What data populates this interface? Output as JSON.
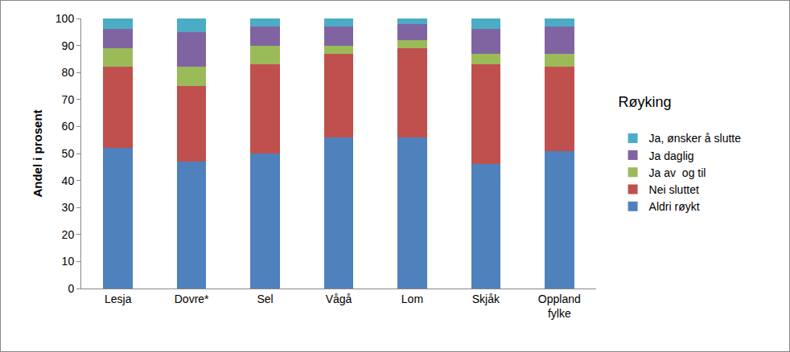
{
  "chart_data": {
    "type": "bar",
    "stacked": true,
    "y_label": "Andel i prosent",
    "legend_title": "Røyking",
    "legend": "right",
    "grid": false,
    "categories": [
      "Lesja",
      "Dovre*",
      "Sel",
      "Vågå",
      "Lom",
      "Skjåk",
      "Oppland fylke"
    ],
    "series": [
      {
        "name": "Aldri røykt",
        "color": "#4f81bd",
        "values": [
          52,
          47,
          50,
          56,
          56,
          46,
          51
        ]
      },
      {
        "name": "Nei sluttet",
        "color": "#c0504d",
        "values": [
          30,
          28,
          33,
          31,
          33,
          37,
          31
        ]
      },
      {
        "name": "Ja av  og til",
        "color": "#9bbb59",
        "values": [
          7,
          7,
          7,
          3,
          3,
          4,
          5
        ]
      },
      {
        "name": "Ja daglig",
        "color": "#8064a2",
        "values": [
          7,
          13,
          7,
          7,
          6,
          9,
          10
        ]
      },
      {
        "name": "Ja, ønsker å slutte",
        "color": "#4bacc6",
        "values": [
          4,
          5,
          3,
          3,
          2,
          4,
          3
        ]
      }
    ],
    "ylim": [
      0,
      100
    ],
    "yticks": [
      0,
      10,
      20,
      30,
      40,
      50,
      60,
      70,
      80,
      90,
      100
    ]
  }
}
